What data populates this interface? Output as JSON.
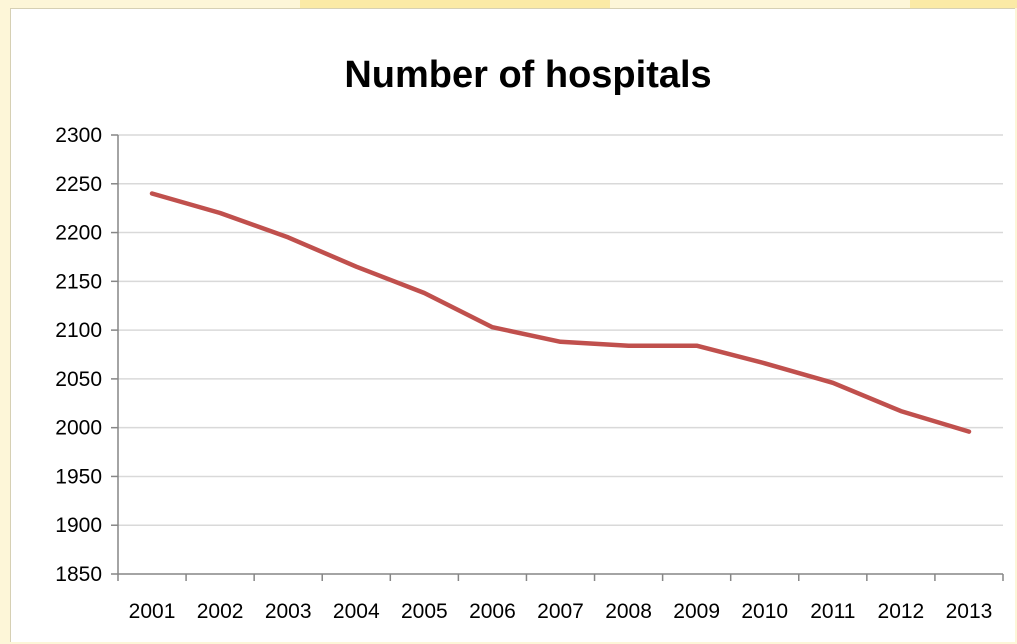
{
  "chart_data": {
    "type": "line",
    "title": "Number of hospitals",
    "xlabel": "",
    "ylabel": "",
    "categories": [
      "2001",
      "2002",
      "2003",
      "2004",
      "2005",
      "2006",
      "2007",
      "2008",
      "2009",
      "2010",
      "2011",
      "2012",
      "2013"
    ],
    "series": [
      {
        "values": [
          2240,
          2220,
          2195,
          2165,
          2138,
          2103,
          2088,
          2084,
          2084,
          2066,
          2046,
          2017,
          1996
        ],
        "color": "#c0504d"
      }
    ],
    "ylim": [
      1850,
      2300
    ],
    "yticks": [
      "1850",
      "1900",
      "1950",
      "2000",
      "2050",
      "2100",
      "2150",
      "2200",
      "2250",
      "2300"
    ],
    "grid": true,
    "legend": "none"
  },
  "colors": {
    "gridline": "#d9d9d9",
    "axis": "#868686",
    "text": "#000000",
    "background": "#ffffff"
  }
}
